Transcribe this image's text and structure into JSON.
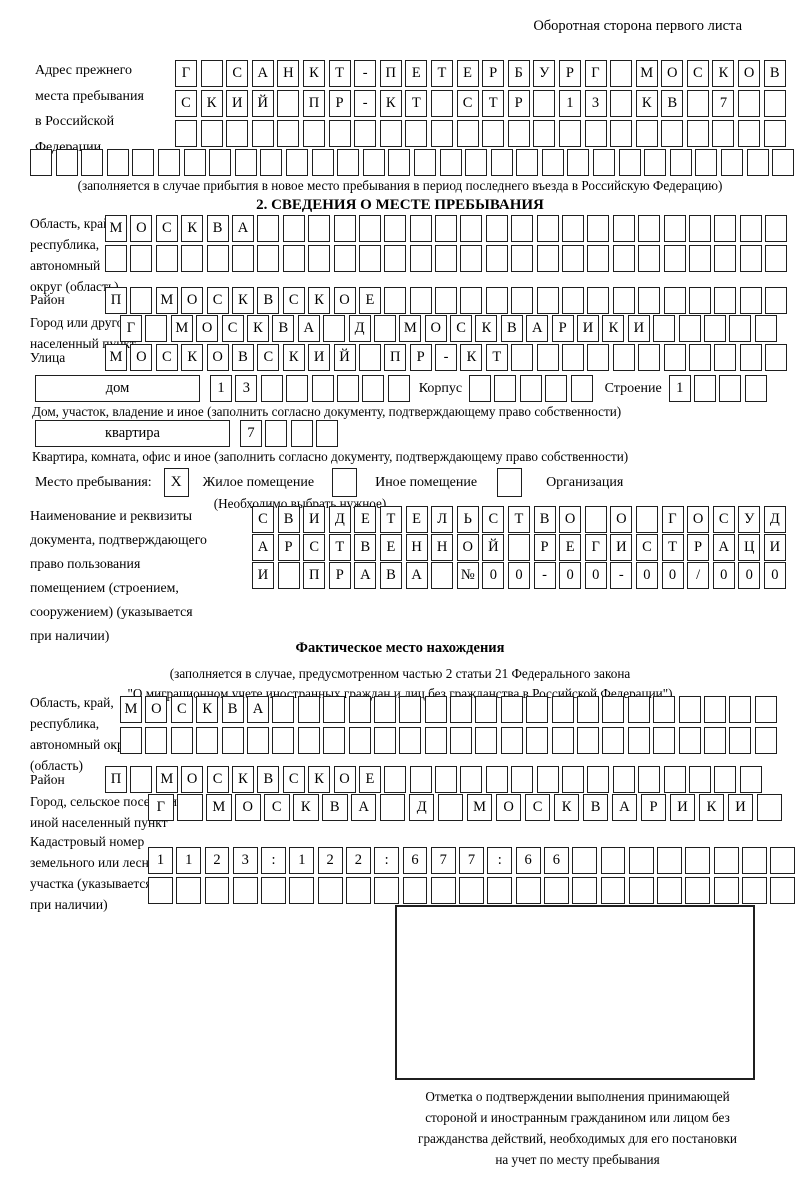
{
  "page": {
    "header_note": "Оборотная сторона первого листа"
  },
  "prev_address": {
    "label_lines": [
      "Адрес прежнего",
      "места пребывания",
      "в Российской",
      "Федерации"
    ],
    "row1": {
      "text": "Г САНКТ-ПЕТЕРБУРГ МОСКОВ",
      "len": 24
    },
    "row2": {
      "text": "СКИЙ ПР-КТ СТР 13 КВ 7",
      "len": 24
    },
    "row3": {
      "text": "",
      "len": 24
    },
    "row4": {
      "text": "",
      "len": 30
    },
    "note": "(заполняется в случае прибытия в новое место пребывания в период последнего въезда в Российскую Федерацию)"
  },
  "section2": {
    "title": "2. СВЕДЕНИЯ О МЕСТЕ ПРЕБЫВАНИЯ",
    "oblast": {
      "label_lines": [
        "Область, край,",
        "республика,",
        "автономный",
        "округ (область)"
      ],
      "row1": {
        "text": "МОСКВА",
        "len": 27
      },
      "row2": {
        "text": "",
        "len": 27
      }
    },
    "raion": {
      "label": "Район",
      "row": {
        "text": "П МОСКВСКОЕ",
        "len": 27
      }
    },
    "gorod": {
      "label_lines": [
        "Город или другой",
        "населенный пункт"
      ],
      "row": {
        "text": "Г МОСКВА Д МОСКВАРИКИ",
        "len": 26
      }
    },
    "ulitsa": {
      "label": "Улица",
      "row": {
        "text": "МОСКОВСКИЙ ПР-КТ",
        "len": 27
      }
    },
    "dom": {
      "box_label": "дом",
      "cells1": {
        "text": "13",
        "len": 8
      },
      "korpus_label": "Корпус",
      "korpus_cells": {
        "text": "",
        "len": 5
      },
      "stroenie_label": "Строение",
      "stroenie_cells": {
        "text": "1",
        "len": 4
      },
      "caption": "Дом, участок, владение и иное (заполнить согласно документу, подтверждающему право собственности)"
    },
    "kvartira": {
      "box_label": "квартира",
      "cells": {
        "text": "7",
        "len": 4
      },
      "caption": "Квартира, комната, офис и иное (заполнить согласно документу, подтверждающему право собственности)"
    },
    "stay": {
      "label": "Место пребывания:",
      "opt1_mark": "X",
      "opt1": "Жилое помещение",
      "opt2_mark": "",
      "opt2": "Иное помещение",
      "opt3_mark": "",
      "opt3": "Организация",
      "note": "(Необходимо выбрать нужное)"
    },
    "doc": {
      "label_lines": [
        "Наименование и реквизиты",
        "документа, подтверждающего",
        "право пользования",
        "помещением (строением,",
        "сооружением) (указывается",
        "при наличии)"
      ],
      "row1": {
        "text": "СВИДЕТЕЛЬСТВО О ГОСУД",
        "len": 21
      },
      "row2": {
        "text": "АРСТВЕННОЙ РЕГИСТРАЦИ",
        "len": 21
      },
      "row3": {
        "text": "И ПРАВА №00-00-00/000",
        "len": 21
      }
    }
  },
  "actual": {
    "title": "Фактическое место нахождения",
    "note_line1": "(заполняется в случае, предусмотренном частью 2 статьи 21 Федерального закона",
    "note_line2": "\"О миграционном учете иностранных граждан и лиц без гражданства в Российской Федерации\")",
    "oblast": {
      "label_lines": [
        "Область, край,",
        "республика,",
        "автономный округ",
        "(область)"
      ],
      "row1": {
        "text": "МОСКВА",
        "len": 26
      },
      "row2": {
        "text": "",
        "len": 26
      }
    },
    "raion": {
      "label": "Район",
      "row": {
        "text": "П МОСКВСКОЕ",
        "len": 26
      }
    },
    "gorod": {
      "label_lines": [
        "Город, сельское поселение,",
        "иной населенный пункт"
      ],
      "row": {
        "text": "Г МОСКВА Д МОСКВАРИКИ",
        "len": 22
      }
    },
    "kadastr": {
      "label_lines": [
        "Кадастровый номер",
        "земельного или лесного",
        "участка (указывается",
        "при наличии)"
      ],
      "row1": {
        "text": "1123:122:677:66",
        "len": 23
      },
      "row2": {
        "text": "",
        "len": 23
      }
    },
    "stamp_caption_lines": [
      "Отметка о подтверждении выполнения принимающей",
      "стороной и иностранным гражданином или лицом без",
      "гражданства действий, необходимых для его постановки",
      "на учет по месту пребывания"
    ]
  }
}
